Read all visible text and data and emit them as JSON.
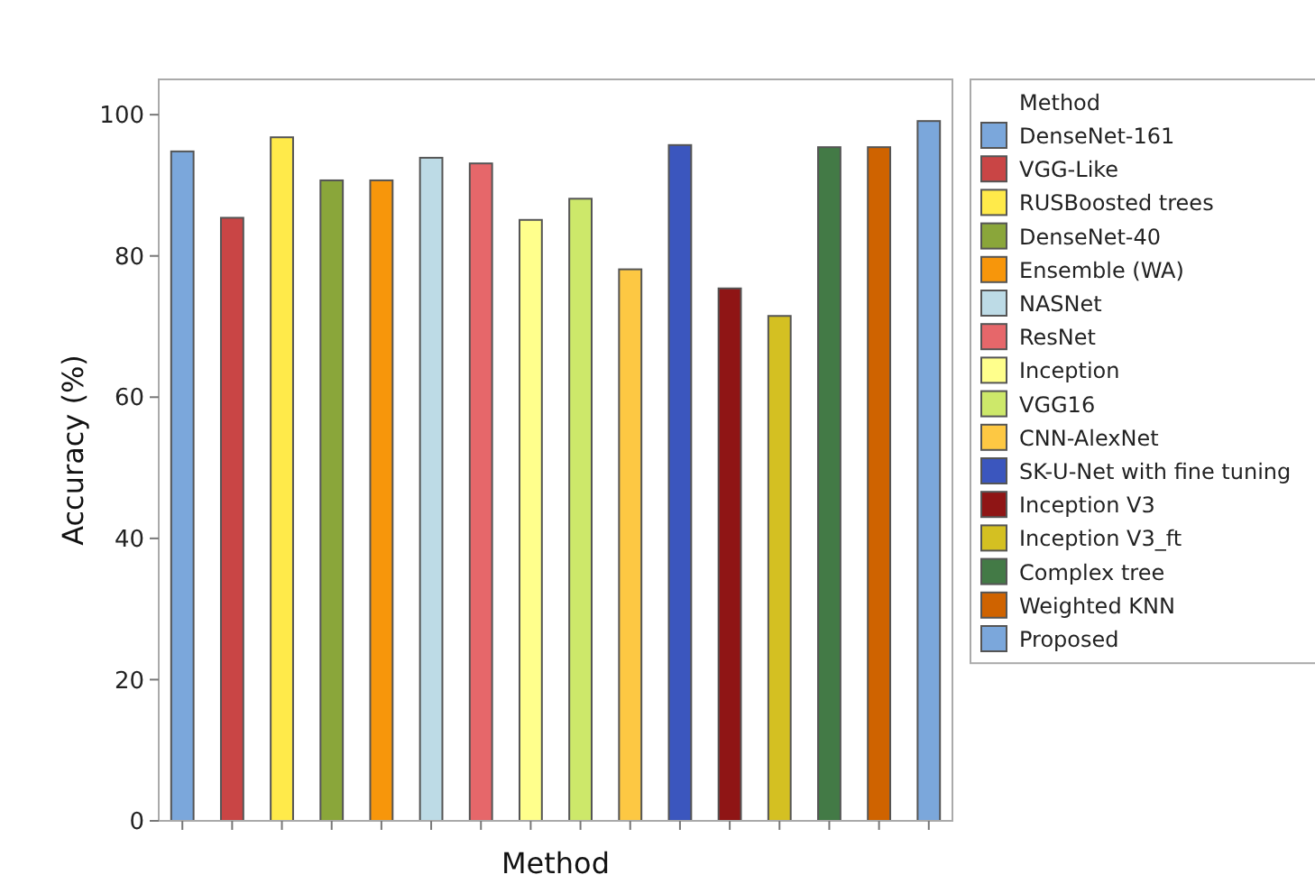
{
  "chart_data": {
    "type": "bar",
    "stacked": true,
    "xlabel": "Method",
    "ylabel": "Accuracy (%)",
    "legend_title": "Method",
    "legend": "right",
    "tick_labels": "y",
    "grid": false,
    "categories": [
      null,
      null,
      null,
      null,
      null,
      null,
      null,
      null,
      null,
      null,
      null,
      null,
      null,
      null,
      null,
      null
    ],
    "ylim": [
      0,
      105
    ],
    "yticks": [
      0,
      20,
      40,
      60,
      80,
      100
    ],
    "series": [
      {
        "name": "DenseNet-161",
        "color": "#7ba7db",
        "values": [
          94.8,
          null,
          null,
          null,
          null,
          null,
          null,
          null,
          null,
          null,
          null,
          null,
          null,
          null,
          null,
          null
        ]
      },
      {
        "name": "VGG-Like",
        "color": "#c94545",
        "values": [
          null,
          85.4,
          null,
          null,
          null,
          null,
          null,
          null,
          null,
          null,
          null,
          null,
          null,
          null,
          null,
          null
        ]
      },
      {
        "name": "RUSBoosted trees",
        "color": "#ffea4a",
        "values": [
          null,
          null,
          96.8,
          null,
          null,
          null,
          null,
          null,
          null,
          null,
          null,
          null,
          null,
          null,
          null,
          null
        ]
      },
      {
        "name": "DenseNet-40",
        "color": "#8aa63a",
        "values": [
          null,
          null,
          null,
          90.7,
          null,
          null,
          null,
          null,
          null,
          null,
          null,
          null,
          null,
          null,
          null,
          null
        ]
      },
      {
        "name": "Ensemble (WA)",
        "color": "#f7960b",
        "values": [
          null,
          null,
          null,
          null,
          90.7,
          null,
          null,
          null,
          null,
          null,
          null,
          null,
          null,
          null,
          null,
          null
        ]
      },
      {
        "name": "NASNet",
        "color": "#bddbe6",
        "values": [
          null,
          null,
          null,
          null,
          null,
          93.9,
          null,
          null,
          null,
          null,
          null,
          null,
          null,
          null,
          null,
          null
        ]
      },
      {
        "name": "ResNet",
        "color": "#e6676a",
        "values": [
          null,
          null,
          null,
          null,
          null,
          null,
          93.1,
          null,
          null,
          null,
          null,
          null,
          null,
          null,
          null,
          null
        ]
      },
      {
        "name": "Inception",
        "color": "#ffff8c",
        "values": [
          null,
          null,
          null,
          null,
          null,
          null,
          null,
          85.1,
          null,
          null,
          null,
          null,
          null,
          null,
          null,
          null
        ]
      },
      {
        "name": "VGG16",
        "color": "#cde86a",
        "values": [
          null,
          null,
          null,
          null,
          null,
          null,
          null,
          null,
          88.1,
          null,
          null,
          null,
          null,
          null,
          null,
          null
        ]
      },
      {
        "name": "CNN-AlexNet",
        "color": "#fdc843",
        "values": [
          null,
          null,
          null,
          null,
          null,
          null,
          null,
          null,
          null,
          78.1,
          null,
          null,
          null,
          null,
          null,
          null
        ]
      },
      {
        "name": "SK-U-Net with fine tuning",
        "color": "#3b56be",
        "values": [
          null,
          null,
          null,
          null,
          null,
          null,
          null,
          null,
          null,
          null,
          95.7,
          null,
          null,
          null,
          null,
          null
        ]
      },
      {
        "name": "Inception V3",
        "color": "#8f1515",
        "values": [
          null,
          null,
          null,
          null,
          null,
          null,
          null,
          null,
          null,
          null,
          null,
          75.4,
          null,
          null,
          null,
          null
        ]
      },
      {
        "name": "Inception V3_ft",
        "color": "#d4c022",
        "values": [
          null,
          null,
          null,
          null,
          null,
          null,
          null,
          null,
          null,
          null,
          null,
          null,
          71.5,
          null,
          null,
          null
        ]
      },
      {
        "name": "Complex tree",
        "color": "#437a46",
        "values": [
          null,
          null,
          null,
          null,
          null,
          null,
          null,
          null,
          null,
          null,
          null,
          null,
          null,
          95.4,
          null,
          null
        ]
      },
      {
        "name": "Weighted KNN",
        "color": "#cf6300",
        "values": [
          null,
          null,
          null,
          null,
          null,
          null,
          null,
          null,
          null,
          null,
          null,
          null,
          null,
          null,
          95.4,
          null
        ]
      },
      {
        "name": "Proposed",
        "color": "#7ba7db",
        "values": [
          null,
          null,
          null,
          null,
          null,
          null,
          null,
          null,
          null,
          null,
          null,
          null,
          null,
          null,
          null,
          99.1
        ]
      }
    ]
  }
}
